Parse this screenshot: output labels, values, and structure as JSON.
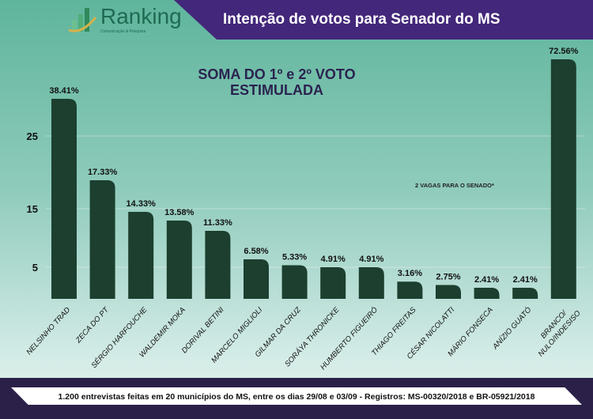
{
  "header": {
    "title": "Intenção de votos para Senador do MS"
  },
  "logo": {
    "name": "Ranking",
    "tagline": "Comunicação & Pesquisa"
  },
  "subtitle_line1": "SOMA DO 1º e 2º VOTO",
  "subtitle_line2": "ESTIMULADA",
  "note": "2 VAGAS PARA O SENADO*",
  "footer": "1.200 entrevistas feitas em 20 municípios do MS, entre os dias 29/08 e 03/09 - Registros: MS-00320/2018 e BR-05921/2018",
  "chart_data": {
    "type": "bar",
    "title": "SOMA DO 1º e 2º VOTO ESTIMULADA",
    "categories": [
      "NELSINHO TRAD",
      "ZECA DO PT",
      "SÉRGIO HARFOUCHE",
      "WALDEMIR MOKA",
      "DORIVAL BETINI",
      "MARCELO MIGLIOLI",
      "GILMAR DA CRUZ",
      "SORÁYA THRONICKE",
      "HUMBERTO FIGUEIRÓ",
      "THIAGO FREITAS",
      "CÉSAR NICOLATTI",
      "MÁRIO FONSECA",
      "ANÍZIO GUATÓ",
      "BRANCO/ NULO/INDESISO"
    ],
    "values": [
      38.41,
      17.33,
      14.33,
      13.58,
      11.33,
      6.58,
      5.33,
      4.91,
      4.91,
      3.16,
      2.75,
      2.41,
      2.41,
      72.56
    ],
    "labels": [
      "38.41%",
      "17.33%",
      "14.33%",
      "13.58%",
      "11.33%",
      "6.58%",
      "5.33%",
      "4.91%",
      "4.91%",
      "3.16%",
      "2.75%",
      "2.41%",
      "2.41%",
      "72.56%"
    ],
    "yticks": [
      5,
      15,
      25
    ],
    "bar_color": "#1c3f2f",
    "grid": true,
    "legend": "none"
  }
}
